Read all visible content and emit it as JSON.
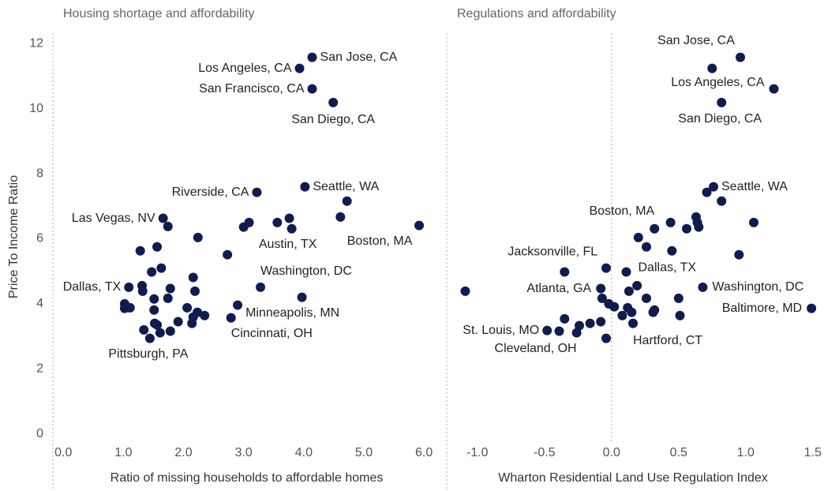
{
  "chart_data": [
    {
      "type": "scatter",
      "title": "Housing shortage and affordability",
      "xlabel": "Ratio of missing households to affordable homes",
      "ylabel": "Price To Income Ratio",
      "color": "#0f1c4d",
      "x": [
        3.93,
        4.14,
        4.14,
        4.49,
        3.22,
        4.02,
        4.72,
        1.66,
        1.74,
        2.24,
        3.09,
        3.0,
        3.56,
        3.76,
        3.8,
        4.61,
        5.92,
        1.28,
        1.56,
        1.63,
        1.47,
        2.73,
        1.09,
        1.31,
        1.32,
        2.16,
        1.78,
        1.74,
        2.19,
        3.28,
        3.97,
        1.02,
        1.02,
        1.11,
        1.51,
        2.06,
        2.23,
        2.35,
        2.16,
        1.51,
        2.9,
        1.91,
        2.14,
        2.79,
        1.34,
        1.52,
        1.56,
        1.61,
        1.78,
        1.44
      ],
      "y": [
        11.24,
        11.58,
        10.61,
        10.19,
        7.43,
        7.6,
        7.16,
        6.63,
        6.38,
        6.04,
        6.5,
        6.36,
        6.5,
        6.63,
        6.31,
        6.67,
        6.41,
        5.63,
        5.75,
        5.1,
        4.98,
        5.51,
        4.51,
        4.56,
        4.39,
        4.81,
        4.47,
        4.17,
        4.39,
        4.51,
        4.2,
        4.0,
        3.86,
        3.88,
        4.15,
        3.88,
        3.74,
        3.64,
        3.59,
        3.81,
        3.96,
        3.45,
        3.4,
        3.57,
        3.2,
        3.4,
        3.35,
        3.11,
        3.16,
        2.94
      ],
      "point_labels": [
        "Los Angeles, CA",
        "San Jose, CA",
        "San Francisco, CA",
        "San Diego, CA",
        "Riverside, CA",
        "Seattle, WA",
        null,
        "Las Vegas, NV",
        null,
        null,
        null,
        null,
        null,
        null,
        "Austin, TX",
        null,
        "Boston, MA",
        null,
        null,
        null,
        null,
        null,
        "Dallas, TX",
        null,
        null,
        null,
        null,
        null,
        null,
        "Washington, DC",
        null,
        null,
        null,
        null,
        null,
        null,
        null,
        null,
        null,
        null,
        "Minneapolis, MN",
        null,
        null,
        "Cincinnati, OH",
        null,
        null,
        null,
        null,
        null,
        "Pittsburgh, PA"
      ],
      "xlim": [
        -0.2,
        6.3
      ],
      "xticks": [
        {
          "value": 0,
          "label": "0.0"
        },
        {
          "value": 1,
          "label": "1.0"
        },
        {
          "value": 2,
          "label": "2.0"
        },
        {
          "value": 3,
          "label": "3.0"
        },
        {
          "value": 4,
          "label": "4.0"
        },
        {
          "value": 5,
          "label": "5.0"
        },
        {
          "value": 6,
          "label": "6.0"
        }
      ],
      "ylim": [
        -0.25,
        12.25
      ],
      "yticks": [
        0,
        2,
        4,
        6,
        8,
        10,
        12
      ]
    },
    {
      "type": "scatter",
      "title": "Regulations and affordability",
      "xlabel": "Wharton Residential Land Use Regulation Index",
      "color": "#0f1c4d",
      "x": [
        0.96,
        0.75,
        1.21,
        0.82,
        0.76,
        0.71,
        0.82,
        0.63,
        0.64,
        1.06,
        0.44,
        0.32,
        0.56,
        0.65,
        0.2,
        0.26,
        0.45,
        0.95,
        -0.35,
        -0.04,
        0.11,
        0.19,
        0.13,
        0.68,
        -0.08,
        -1.09,
        -0.07,
        0.26,
        0.5,
        -0.02,
        0.02,
        0.12,
        1.49,
        0.32,
        0.31,
        0.15,
        0.08,
        0.51,
        -0.35,
        -0.08,
        -0.16,
        -0.24,
        0.16,
        -0.48,
        -0.39,
        -0.26,
        -0.04
      ],
      "y": [
        11.58,
        11.24,
        10.61,
        10.19,
        7.6,
        7.43,
        7.16,
        6.67,
        6.5,
        6.5,
        6.5,
        6.31,
        6.31,
        6.36,
        6.04,
        5.75,
        5.63,
        5.51,
        4.98,
        5.1,
        4.98,
        4.56,
        4.39,
        4.51,
        4.47,
        4.39,
        4.17,
        4.17,
        4.17,
        4.0,
        3.91,
        3.88,
        3.86,
        3.81,
        3.74,
        3.74,
        3.64,
        3.64,
        3.54,
        3.45,
        3.4,
        3.33,
        3.4,
        3.18,
        3.16,
        3.11,
        2.94
      ],
      "point_labels": [
        "San Jose, CA",
        null,
        "Los Angeles, CA",
        "San Diego, CA",
        "Seattle, WA",
        null,
        null,
        null,
        null,
        null,
        null,
        "Boston, MA",
        null,
        null,
        null,
        null,
        null,
        null,
        "Jacksonville, FL",
        null,
        "Dallas, TX",
        null,
        null,
        "Washington, DC",
        "Atlanta, GA",
        null,
        null,
        null,
        null,
        null,
        null,
        null,
        "Baltimore, MD",
        null,
        null,
        null,
        null,
        null,
        null,
        null,
        null,
        null,
        "Hartford, CT",
        "St. Louis, MO",
        null,
        "Cleveland, OH",
        null
      ],
      "xlim": [
        -1.24,
        1.56
      ],
      "xticks": [
        {
          "value": -1,
          "label": "-1.0"
        },
        {
          "value": -0.5,
          "label": "-0.5"
        },
        {
          "value": 0,
          "label": "0.0"
        },
        {
          "value": 0.5,
          "label": "0.5"
        },
        {
          "value": 1,
          "label": "1.0"
        },
        {
          "value": 1.5,
          "label": "1.5"
        }
      ]
    }
  ]
}
